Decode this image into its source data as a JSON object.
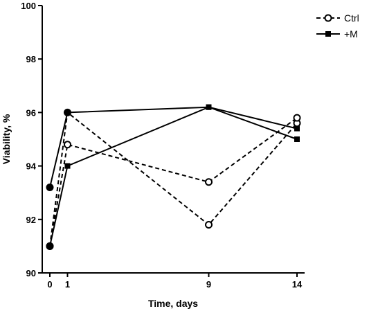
{
  "chart_data": {
    "type": "line",
    "title": "",
    "xlabel": "Time, days",
    "ylabel": "Viability, %",
    "xlim": [
      0,
      14
    ],
    "ylim": [
      90,
      100
    ],
    "xticks": [
      "0",
      "1",
      "9",
      "14"
    ],
    "yticks": [
      "90",
      "92",
      "94",
      "96",
      "98",
      "100"
    ],
    "grid": false,
    "legend_position": "top-right",
    "series": [
      {
        "name": "Ctrl",
        "style": "dashed",
        "marker": "open-circle",
        "color": "#000000",
        "replicates": [
          {
            "x": [
              0,
              1,
              9,
              14
            ],
            "y": [
              91.0,
              96.0,
              91.8,
              95.6
            ]
          },
          {
            "x": [
              0,
              1,
              9,
              14
            ],
            "y": [
              91.0,
              94.8,
              93.4,
              95.8
            ]
          }
        ]
      },
      {
        "name": "+M",
        "style": "solid",
        "marker": "filled-square",
        "color": "#000000",
        "replicates": [
          {
            "x": [
              0,
              1,
              9,
              14
            ],
            "y": [
              93.2,
              96.0,
              96.2,
              95.0
            ]
          },
          {
            "x": [
              0,
              1,
              9,
              14
            ],
            "y": [
              91.0,
              94.0,
              96.2,
              95.4
            ]
          }
        ]
      }
    ]
  }
}
